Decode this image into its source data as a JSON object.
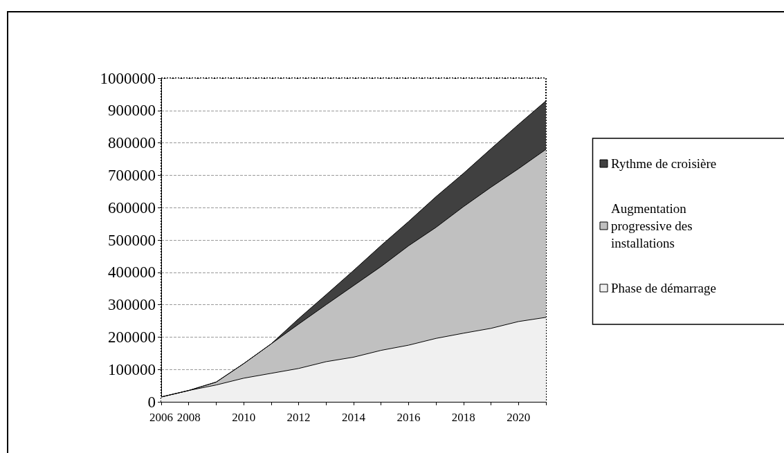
{
  "chart_data": {
    "type": "area",
    "stacked": true,
    "categories": [
      "2006",
      "2008",
      null,
      "2010",
      null,
      "2012",
      null,
      "2014",
      null,
      "2016",
      null,
      "2018",
      null,
      "2020",
      null
    ],
    "series": [
      {
        "name": "Phase de démarrage",
        "color": "#f0f0f0",
        "values": [
          15000,
          35000,
          52000,
          73000,
          88000,
          103000,
          124000,
          138000,
          159000,
          175000,
          196000,
          212000,
          227000,
          248000,
          261000
        ]
      },
      {
        "name": "Augmentation progressive des installations",
        "color": "#c0c0c0",
        "values": [
          0,
          0,
          9000,
          45000,
          91000,
          137000,
          176000,
          221000,
          259000,
          307000,
          343000,
          391000,
          436000,
          472000,
          519000
        ]
      },
      {
        "name": "Rythme de croisière",
        "color": "#404040",
        "values": [
          0,
          0,
          0,
          0,
          0,
          17000,
          31000,
          47000,
          65000,
          75000,
          95000,
          103000,
          119000,
          137000,
          150000
        ]
      }
    ],
    "ylim": [
      0,
      1000000
    ],
    "yticks": [
      0,
      100000,
      200000,
      300000,
      400000,
      500000,
      600000,
      700000,
      800000,
      900000,
      1000000
    ],
    "grid": "y",
    "legend": "right",
    "marker": "none",
    "line_style": "solid"
  }
}
